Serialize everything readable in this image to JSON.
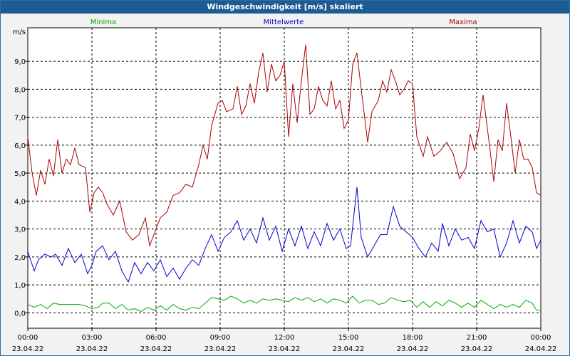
{
  "window": {
    "title": "Windgeschwindigkeit [m/s] skaliert"
  },
  "colors": {
    "minima": "#00aa00",
    "mittelwerte": "#0000cc",
    "maxima": "#aa0000",
    "titlebar": "#1d5b93"
  },
  "chart_data": {
    "type": "line",
    "title": "Windgeschwindigkeit [m/s] skaliert",
    "ylabel": "m/s",
    "xlabel": "",
    "ylim": [
      -0.55,
      10.2
    ],
    "xlim": [
      0,
      24
    ],
    "grid": true,
    "legend_placement": "top",
    "yticks": [
      "0,0",
      "1,0",
      "2,0",
      "3,0",
      "4,0",
      "5,0",
      "6,0",
      "7,0",
      "8,0",
      "9,0"
    ],
    "ytick_values": [
      0,
      1,
      2,
      3,
      4,
      5,
      6,
      7,
      8,
      9
    ],
    "xtick_values": [
      0,
      3,
      6,
      9,
      12,
      15,
      18,
      21,
      24
    ],
    "xticks": [
      {
        "time": "00:00",
        "date": "23.04.22"
      },
      {
        "time": "03:00",
        "date": "23.04.22"
      },
      {
        "time": "06:00",
        "date": "23.04.22"
      },
      {
        "time": "09:00",
        "date": "23.04.22"
      },
      {
        "time": "12:00",
        "date": "23.04.22"
      },
      {
        "time": "15:00",
        "date": "23.04.22"
      },
      {
        "time": "18:00",
        "date": "23.04.22"
      },
      {
        "time": "21:00",
        "date": "23.04.22"
      },
      {
        "time": "00:00",
        "date": "24.04.22"
      }
    ],
    "series": [
      {
        "name": "Minima",
        "color": "#00aa00",
        "points": [
          [
            0,
            0.3
          ],
          [
            0.3,
            0.2
          ],
          [
            0.6,
            0.3
          ],
          [
            0.9,
            0.15
          ],
          [
            1.2,
            0.35
          ],
          [
            1.5,
            0.3
          ],
          [
            1.8,
            0.3
          ],
          [
            2.1,
            0.3
          ],
          [
            2.4,
            0.3
          ],
          [
            2.7,
            0.25
          ],
          [
            3.0,
            0.15
          ],
          [
            3.3,
            0.2
          ],
          [
            3.5,
            0.35
          ],
          [
            3.8,
            0.35
          ],
          [
            4.1,
            0.15
          ],
          [
            4.4,
            0.3
          ],
          [
            4.7,
            0.1
          ],
          [
            5.0,
            0.15
          ],
          [
            5.3,
            0.05
          ],
          [
            5.6,
            0.2
          ],
          [
            5.9,
            0.1
          ],
          [
            6.2,
            0.25
          ],
          [
            6.5,
            0.1
          ],
          [
            6.8,
            0.3
          ],
          [
            7.1,
            0.15
          ],
          [
            7.4,
            0.1
          ],
          [
            7.7,
            0.2
          ],
          [
            8.0,
            0.15
          ],
          [
            8.3,
            0.35
          ],
          [
            8.6,
            0.55
          ],
          [
            8.9,
            0.5
          ],
          [
            9.2,
            0.45
          ],
          [
            9.5,
            0.6
          ],
          [
            9.8,
            0.5
          ],
          [
            10.1,
            0.35
          ],
          [
            10.4,
            0.45
          ],
          [
            10.7,
            0.35
          ],
          [
            11.0,
            0.5
          ],
          [
            11.3,
            0.45
          ],
          [
            11.6,
            0.5
          ],
          [
            11.9,
            0.45
          ],
          [
            12.2,
            0.4
          ],
          [
            12.5,
            0.55
          ],
          [
            12.8,
            0.45
          ],
          [
            13.1,
            0.55
          ],
          [
            13.4,
            0.4
          ],
          [
            13.7,
            0.5
          ],
          [
            14.0,
            0.35
          ],
          [
            14.3,
            0.5
          ],
          [
            14.6,
            0.45
          ],
          [
            14.9,
            0.35
          ],
          [
            15.2,
            0.6
          ],
          [
            15.5,
            0.35
          ],
          [
            15.8,
            0.45
          ],
          [
            16.1,
            0.45
          ],
          [
            16.4,
            0.3
          ],
          [
            16.7,
            0.35
          ],
          [
            17.0,
            0.55
          ],
          [
            17.3,
            0.45
          ],
          [
            17.6,
            0.4
          ],
          [
            17.9,
            0.45
          ],
          [
            18.2,
            0.2
          ],
          [
            18.5,
            0.4
          ],
          [
            18.8,
            0.2
          ],
          [
            19.1,
            0.4
          ],
          [
            19.4,
            0.25
          ],
          [
            19.7,
            0.45
          ],
          [
            20.0,
            0.35
          ],
          [
            20.3,
            0.2
          ],
          [
            20.6,
            0.35
          ],
          [
            20.9,
            0.2
          ],
          [
            21.2,
            0.45
          ],
          [
            21.5,
            0.3
          ],
          [
            21.8,
            0.15
          ],
          [
            22.1,
            0.3
          ],
          [
            22.4,
            0.2
          ],
          [
            22.7,
            0.3
          ],
          [
            23.0,
            0.2
          ],
          [
            23.3,
            0.45
          ],
          [
            23.6,
            0.35
          ],
          [
            23.8,
            0.1
          ],
          [
            24.0,
            0.1
          ]
        ]
      },
      {
        "name": "Mittelwerte",
        "color": "#0000cc",
        "points": [
          [
            0,
            2.2
          ],
          [
            0.3,
            1.5
          ],
          [
            0.5,
            1.9
          ],
          [
            0.8,
            2.1
          ],
          [
            1.1,
            2.0
          ],
          [
            1.3,
            2.1
          ],
          [
            1.6,
            1.7
          ],
          [
            1.9,
            2.3
          ],
          [
            2.2,
            1.8
          ],
          [
            2.5,
            2.1
          ],
          [
            2.8,
            1.4
          ],
          [
            3.0,
            1.7
          ],
          [
            3.2,
            2.2
          ],
          [
            3.5,
            2.4
          ],
          [
            3.8,
            1.9
          ],
          [
            4.1,
            2.2
          ],
          [
            4.4,
            1.5
          ],
          [
            4.7,
            1.1
          ],
          [
            5.0,
            1.8
          ],
          [
            5.3,
            1.4
          ],
          [
            5.6,
            1.8
          ],
          [
            5.9,
            1.5
          ],
          [
            6.2,
            1.9
          ],
          [
            6.5,
            1.3
          ],
          [
            6.8,
            1.6
          ],
          [
            7.1,
            1.2
          ],
          [
            7.4,
            1.6
          ],
          [
            7.7,
            1.9
          ],
          [
            8.0,
            1.7
          ],
          [
            8.3,
            2.3
          ],
          [
            8.6,
            2.8
          ],
          [
            8.9,
            2.2
          ],
          [
            9.2,
            2.7
          ],
          [
            9.5,
            2.9
          ],
          [
            9.8,
            3.3
          ],
          [
            10.1,
            2.6
          ],
          [
            10.4,
            3.0
          ],
          [
            10.7,
            2.5
          ],
          [
            11.0,
            3.4
          ],
          [
            11.3,
            2.6
          ],
          [
            11.6,
            3.1
          ],
          [
            11.9,
            2.2
          ],
          [
            12.2,
            3.0
          ],
          [
            12.5,
            2.4
          ],
          [
            12.8,
            3.1
          ],
          [
            13.1,
            2.3
          ],
          [
            13.4,
            2.9
          ],
          [
            13.7,
            2.4
          ],
          [
            14.0,
            3.2
          ],
          [
            14.3,
            2.6
          ],
          [
            14.6,
            3.0
          ],
          [
            14.9,
            2.3
          ],
          [
            15.1,
            2.4
          ],
          [
            15.4,
            4.5
          ],
          [
            15.6,
            2.7
          ],
          [
            15.9,
            2.0
          ],
          [
            16.2,
            2.4
          ],
          [
            16.5,
            2.8
          ],
          [
            16.8,
            2.8
          ],
          [
            17.1,
            3.8
          ],
          [
            17.4,
            3.1
          ],
          [
            17.7,
            2.9
          ],
          [
            18.0,
            2.7
          ],
          [
            18.3,
            2.3
          ],
          [
            18.6,
            2.0
          ],
          [
            18.9,
            2.5
          ],
          [
            19.2,
            2.2
          ],
          [
            19.4,
            3.2
          ],
          [
            19.7,
            2.4
          ],
          [
            20.0,
            3.0
          ],
          [
            20.3,
            2.6
          ],
          [
            20.6,
            2.7
          ],
          [
            20.9,
            2.3
          ],
          [
            21.2,
            3.3
          ],
          [
            21.5,
            2.9
          ],
          [
            21.8,
            3.0
          ],
          [
            22.1,
            2.0
          ],
          [
            22.4,
            2.5
          ],
          [
            22.7,
            3.3
          ],
          [
            23.0,
            2.5
          ],
          [
            23.3,
            3.1
          ],
          [
            23.6,
            2.9
          ],
          [
            23.8,
            2.3
          ],
          [
            24.0,
            2.6
          ]
        ]
      },
      {
        "name": "Maxima",
        "color": "#aa0000",
        "points": [
          [
            0,
            6.3
          ],
          [
            0.2,
            5.0
          ],
          [
            0.4,
            4.2
          ],
          [
            0.6,
            5.1
          ],
          [
            0.8,
            4.6
          ],
          [
            1.0,
            5.5
          ],
          [
            1.2,
            4.9
          ],
          [
            1.4,
            6.2
          ],
          [
            1.6,
            5.0
          ],
          [
            1.8,
            5.5
          ],
          [
            2.0,
            5.3
          ],
          [
            2.2,
            5.9
          ],
          [
            2.4,
            5.3
          ],
          [
            2.7,
            5.2
          ],
          [
            2.9,
            3.6
          ],
          [
            3.1,
            4.3
          ],
          [
            3.3,
            4.5
          ],
          [
            3.5,
            4.3
          ],
          [
            3.7,
            3.9
          ],
          [
            4.0,
            3.5
          ],
          [
            4.3,
            4.0
          ],
          [
            4.6,
            2.9
          ],
          [
            4.9,
            2.6
          ],
          [
            5.2,
            2.8
          ],
          [
            5.5,
            3.4
          ],
          [
            5.7,
            2.4
          ],
          [
            6.0,
            3.0
          ],
          [
            6.2,
            3.4
          ],
          [
            6.5,
            3.6
          ],
          [
            6.8,
            4.2
          ],
          [
            7.1,
            4.3
          ],
          [
            7.4,
            4.6
          ],
          [
            7.7,
            4.5
          ],
          [
            8.0,
            5.3
          ],
          [
            8.2,
            6.0
          ],
          [
            8.4,
            5.5
          ],
          [
            8.6,
            6.7
          ],
          [
            8.9,
            7.5
          ],
          [
            9.1,
            7.6
          ],
          [
            9.3,
            7.2
          ],
          [
            9.6,
            7.3
          ],
          [
            9.8,
            8.1
          ],
          [
            10.0,
            7.1
          ],
          [
            10.2,
            7.4
          ],
          [
            10.4,
            8.2
          ],
          [
            10.6,
            7.5
          ],
          [
            10.8,
            8.6
          ],
          [
            11.0,
            9.3
          ],
          [
            11.2,
            7.9
          ],
          [
            11.4,
            8.9
          ],
          [
            11.6,
            8.3
          ],
          [
            11.8,
            8.5
          ],
          [
            12.0,
            9.0
          ],
          [
            12.2,
            6.3
          ],
          [
            12.4,
            8.2
          ],
          [
            12.6,
            6.8
          ],
          [
            12.8,
            8.3
          ],
          [
            13.0,
            9.6
          ],
          [
            13.2,
            7.1
          ],
          [
            13.4,
            7.3
          ],
          [
            13.6,
            8.1
          ],
          [
            13.8,
            7.6
          ],
          [
            14.0,
            7.4
          ],
          [
            14.2,
            8.3
          ],
          [
            14.4,
            7.3
          ],
          [
            14.6,
            7.6
          ],
          [
            14.8,
            6.6
          ],
          [
            15.0,
            6.9
          ],
          [
            15.2,
            8.9
          ],
          [
            15.4,
            9.3
          ],
          [
            15.6,
            8.0
          ],
          [
            15.9,
            6.1
          ],
          [
            16.1,
            7.2
          ],
          [
            16.4,
            7.6
          ],
          [
            16.6,
            8.3
          ],
          [
            16.8,
            7.9
          ],
          [
            17.0,
            8.7
          ],
          [
            17.2,
            8.3
          ],
          [
            17.4,
            7.8
          ],
          [
            17.6,
            8.0
          ],
          [
            17.8,
            8.3
          ],
          [
            18.0,
            8.2
          ],
          [
            18.2,
            6.3
          ],
          [
            18.5,
            5.6
          ],
          [
            18.7,
            6.3
          ],
          [
            19.0,
            5.6
          ],
          [
            19.3,
            5.8
          ],
          [
            19.6,
            6.1
          ],
          [
            19.9,
            5.7
          ],
          [
            20.2,
            4.8
          ],
          [
            20.5,
            5.2
          ],
          [
            20.7,
            6.4
          ],
          [
            20.9,
            5.8
          ],
          [
            21.1,
            6.6
          ],
          [
            21.3,
            7.8
          ],
          [
            21.6,
            6.0
          ],
          [
            21.8,
            4.7
          ],
          [
            22.0,
            6.2
          ],
          [
            22.2,
            5.8
          ],
          [
            22.4,
            7.5
          ],
          [
            22.6,
            6.3
          ],
          [
            22.8,
            5.0
          ],
          [
            23.0,
            6.2
          ],
          [
            23.2,
            5.5
          ],
          [
            23.4,
            5.5
          ],
          [
            23.6,
            5.2
          ],
          [
            23.8,
            4.3
          ],
          [
            24.0,
            4.2
          ]
        ]
      }
    ]
  }
}
